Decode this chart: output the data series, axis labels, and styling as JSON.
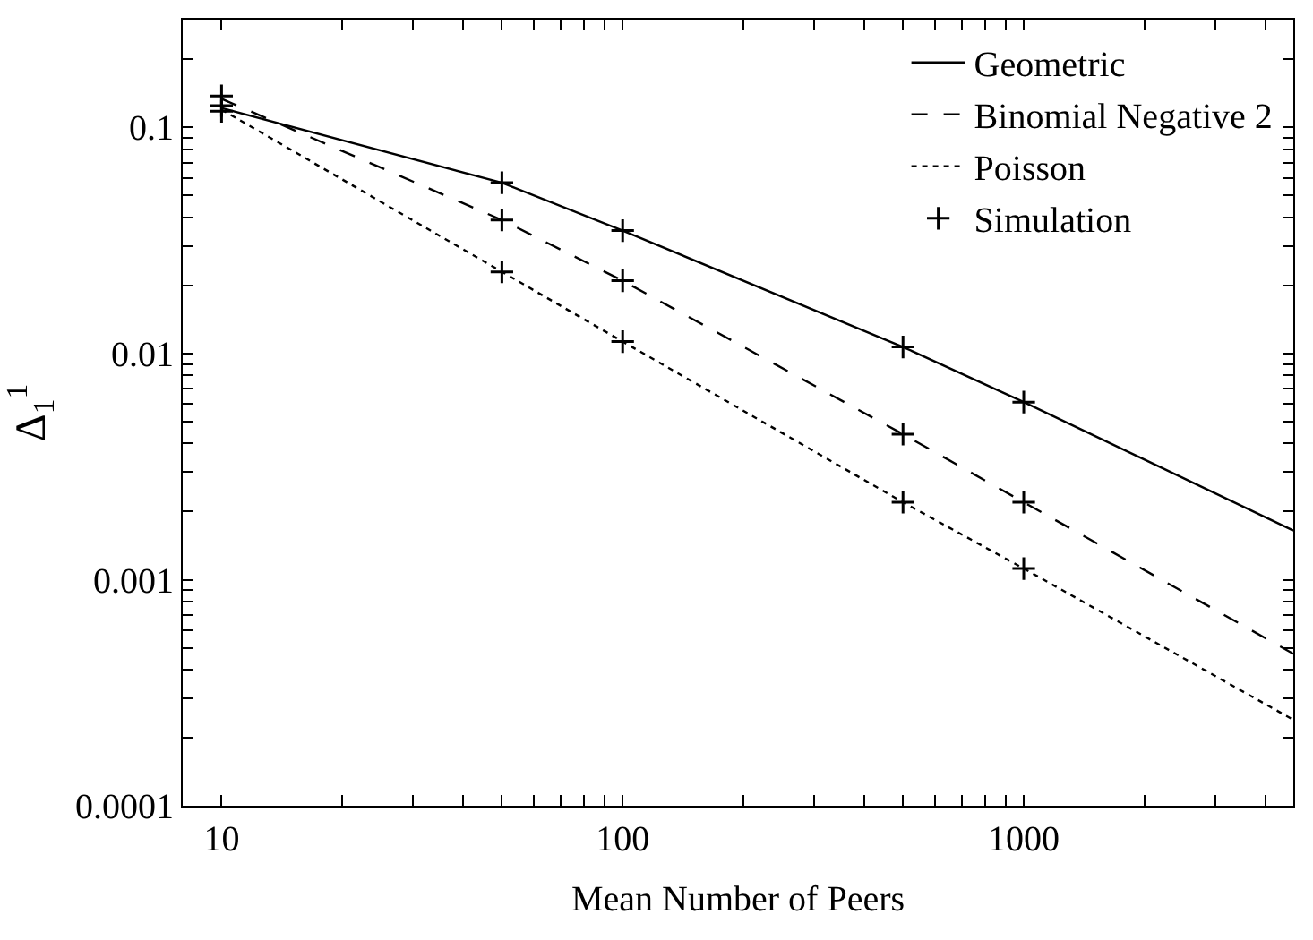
{
  "chart_data": {
    "type": "line",
    "xlabel": "Mean Number of Peers",
    "ylabel": "Δ$_{1}$$^{1}$",
    "log": "xy",
    "legend": "top right",
    "xlim": [
      8,
      4700
    ],
    "ylim": [
      0.0001,
      0.3
    ],
    "xticks": [
      10,
      {
        "value": 20,
        "label": null
      },
      {
        "value": 30,
        "label": null
      },
      {
        "value": 40,
        "label": null
      },
      {
        "value": 50,
        "label": null
      },
      {
        "value": 60,
        "label": null
      },
      {
        "value": 70,
        "label": null
      },
      {
        "value": 80,
        "label": null
      },
      {
        "value": 90,
        "label": null
      },
      100,
      {
        "value": 200,
        "label": null
      },
      {
        "value": 300,
        "label": null
      },
      {
        "value": 400,
        "label": null
      },
      {
        "value": 500,
        "label": null
      },
      {
        "value": 600,
        "label": null
      },
      {
        "value": 700,
        "label": null
      },
      {
        "value": 800,
        "label": null
      },
      {
        "value": 900,
        "label": null
      },
      1000,
      {
        "value": 2000,
        "label": null
      },
      {
        "value": 3000,
        "label": null
      },
      {
        "value": 4000,
        "label": null
      }
    ],
    "yticks": [
      0.0001,
      {
        "value": 0.0002,
        "label": null
      },
      {
        "value": 0.0003,
        "label": null
      },
      {
        "value": 0.0004,
        "label": null
      },
      {
        "value": 0.0005,
        "label": null
      },
      {
        "value": 0.0006,
        "label": null
      },
      {
        "value": 0.0007,
        "label": null
      },
      {
        "value": 0.0008,
        "label": null
      },
      {
        "value": 0.0009,
        "label": null
      },
      0.001,
      {
        "value": 0.002,
        "label": null
      },
      {
        "value": 0.003,
        "label": null
      },
      {
        "value": 0.004,
        "label": null
      },
      {
        "value": 0.005,
        "label": null
      },
      {
        "value": 0.006,
        "label": null
      },
      {
        "value": 0.007,
        "label": null
      },
      {
        "value": 0.008,
        "label": null
      },
      {
        "value": 0.009,
        "label": null
      },
      0.01,
      {
        "value": 0.02,
        "label": null
      },
      {
        "value": 0.03,
        "label": null
      },
      {
        "value": 0.04,
        "label": null
      },
      {
        "value": 0.05,
        "label": null
      },
      {
        "value": 0.06,
        "label": null
      },
      {
        "value": 0.07,
        "label": null
      },
      {
        "value": 0.08,
        "label": null
      },
      {
        "value": 0.09,
        "label": null
      },
      0.1,
      {
        "value": 0.2,
        "label": null
      },
      {
        "value": 0.3,
        "label": null
      }
    ],
    "series": [
      {
        "name": "Geometric",
        "color": "#000000",
        "line_style": "solid",
        "marker": "none",
        "x": [
          10,
          50,
          100,
          500,
          1000,
          4700
        ],
        "values": [
          0.122,
          0.057,
          0.035,
          0.0107,
          0.0061,
          0.00165
        ]
      },
      {
        "name": "Binomial Negative 2",
        "color": "#000000",
        "line_style": "dashed",
        "marker": "none",
        "x": [
          10,
          50,
          100,
          500,
          1000,
          4700
        ],
        "values": [
          0.134,
          0.039,
          0.021,
          0.0044,
          0.0022,
          0.00047
        ]
      },
      {
        "name": "Poisson",
        "color": "#000000",
        "line_style": "dotted",
        "marker": "none",
        "x": [
          10,
          50,
          100,
          500,
          1000,
          4700
        ],
        "values": [
          0.12,
          0.023,
          0.0113,
          0.0022,
          0.00112,
          0.00024
        ]
      },
      {
        "name": "Simulation",
        "type": "scatter",
        "color": "#000000",
        "marker": "cross",
        "x": [
          10,
          10,
          10,
          50,
          50,
          50,
          100,
          100,
          100,
          500,
          500,
          500,
          1000,
          1000,
          1000
        ],
        "values": [
          0.138,
          0.125,
          0.118,
          0.057,
          0.039,
          0.023,
          0.035,
          0.021,
          0.0113,
          0.0107,
          0.0044,
          0.0022,
          0.0061,
          0.0022,
          0.00112
        ]
      }
    ]
  }
}
